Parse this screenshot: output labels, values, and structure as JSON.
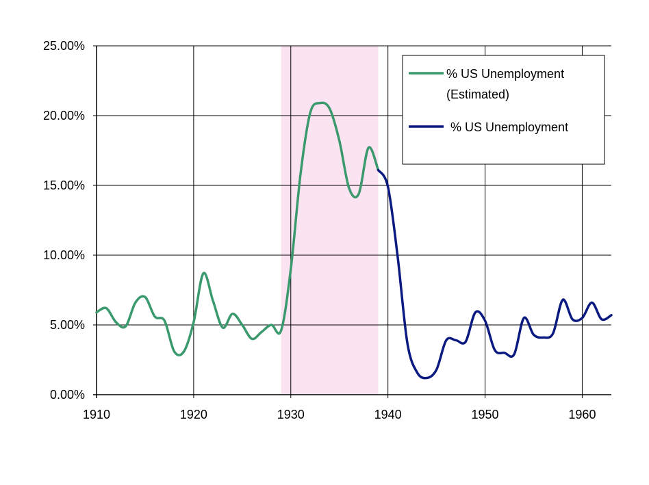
{
  "chart_data": {
    "type": "line",
    "title": "",
    "xlabel": "",
    "ylabel": "",
    "xlim": [
      1910,
      1963
    ],
    "ylim": [
      0,
      25
    ],
    "x_ticks": [
      "1910",
      "1920",
      "1930",
      "1940",
      "1950",
      "1960"
    ],
    "y_ticks": [
      "0.00%",
      "5.00%",
      "10.00%",
      "15.00%",
      "20.00%",
      "25.00%"
    ],
    "grid": true,
    "legend_position": "top-right",
    "shaded_region": {
      "x_start": 1929,
      "x_end": 1939,
      "color": "#fbe3f1"
    },
    "series": [
      {
        "name": "% US Unemployment (Estimated)",
        "legend_lines": [
          "% US Unemployment",
          "(Estimated)"
        ],
        "color": "#3a9a6e",
        "x": [
          1910,
          1911,
          1912,
          1913,
          1914,
          1915,
          1916,
          1917,
          1918,
          1919,
          1920,
          1921,
          1922,
          1923,
          1924,
          1925,
          1926,
          1927,
          1928,
          1929,
          1930,
          1931,
          1932,
          1933,
          1934,
          1935,
          1936,
          1937,
          1938,
          1939
        ],
        "values": [
          5.9,
          6.2,
          5.2,
          4.9,
          6.6,
          7.0,
          5.6,
          5.3,
          3.1,
          3.1,
          5.2,
          8.7,
          6.7,
          4.8,
          5.8,
          5.0,
          4.0,
          4.5,
          5.0,
          4.6,
          9.0,
          15.8,
          20.2,
          20.9,
          20.5,
          18.2,
          14.8,
          14.4,
          17.7,
          16.1
        ]
      },
      {
        "name": "% US Unemployment",
        "legend_lines": [
          "% US Unemployment"
        ],
        "color": "#0a1a80",
        "x": [
          1939,
          1940,
          1941,
          1942,
          1943,
          1944,
          1945,
          1946,
          1947,
          1948,
          1949,
          1950,
          1951,
          1952,
          1953,
          1954,
          1955,
          1956,
          1957,
          1958,
          1959,
          1960,
          1961,
          1962,
          1963
        ],
        "values": [
          16.1,
          14.9,
          9.9,
          3.7,
          1.6,
          1.2,
          1.8,
          3.9,
          3.9,
          3.8,
          5.9,
          5.3,
          3.2,
          3.0,
          2.9,
          5.5,
          4.3,
          4.1,
          4.4,
          6.8,
          5.4,
          5.5,
          6.6,
          5.4,
          5.7
        ]
      }
    ]
  }
}
